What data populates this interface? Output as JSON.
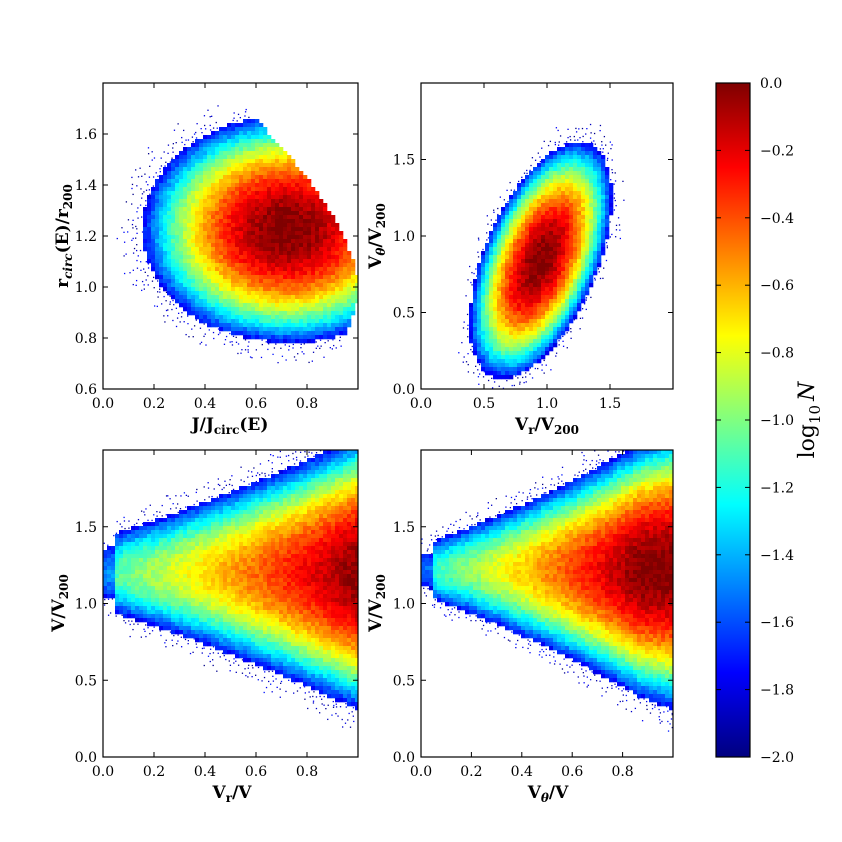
{
  "colormap": {
    "name": "jet",
    "stops": [
      "#00007f",
      "#0000ff",
      "#0080ff",
      "#00ffff",
      "#80ff80",
      "#ffff00",
      "#ff8000",
      "#ff0000",
      "#7f0000"
    ]
  },
  "chart_data": [
    {
      "type": "heatmap",
      "panel": "top-left",
      "xlabel": "J/J",
      "xlabel_sub": "circ",
      "xlabel_tail": "(E)",
      "ylabel": "r",
      "ylabel_sub": "circ",
      "ylabel_mid": "(E)/r",
      "ylabel_sub2": "200",
      "xlim": [
        0,
        1.0
      ],
      "ylim": [
        0.6,
        1.8
      ],
      "xticks": [
        "0.0",
        "0.2",
        "0.4",
        "0.6",
        "0.8"
      ],
      "yticks": [
        "0.6",
        "0.8",
        "1.0",
        "1.2",
        "1.4",
        "1.6"
      ],
      "density_peak": [
        0.75,
        1.22
      ],
      "boundary": "upper-right edge cut by J <= J_circ, tip at x=1.0, y=1.0"
    },
    {
      "type": "heatmap",
      "panel": "top-right",
      "xlabel": "V",
      "xlabel_sub": "r",
      "xlabel_tail": "/V",
      "xlabel_sub2": "200",
      "ylabel": "V",
      "ylabel_sub": "θ",
      "ylabel_mid": "/V",
      "ylabel_sub2": "200",
      "xlim": [
        0,
        2.0
      ],
      "ylim": [
        0,
        2.0
      ],
      "xticks": [
        "0.0",
        "0.5",
        "1.0",
        "1.5"
      ],
      "yticks": [
        "0.0",
        "0.5",
        "1.0",
        "1.5"
      ],
      "density_peak": [
        0.95,
        0.85
      ]
    },
    {
      "type": "heatmap",
      "panel": "bottom-left",
      "xlabel": "V",
      "xlabel_sub": "r",
      "xlabel_tail": "/V",
      "ylabel": "V/V",
      "ylabel_sub": "200",
      "xlim": [
        0,
        1.0
      ],
      "ylim": [
        0,
        2.0
      ],
      "xticks": [
        "0.0",
        "0.2",
        "0.4",
        "0.6",
        "0.8"
      ],
      "yticks": [
        "0.0",
        "0.5",
        "1.0",
        "1.5"
      ],
      "density_peak": [
        0.9,
        1.2
      ]
    },
    {
      "type": "heatmap",
      "panel": "bottom-right",
      "xlabel": "V",
      "xlabel_sub": "θ",
      "xlabel_tail": "/V",
      "ylabel": "V/V",
      "ylabel_sub": "200",
      "xlim": [
        0,
        1.0
      ],
      "ylim": [
        0,
        2.0
      ],
      "xticks": [
        "0.0",
        "0.2",
        "0.4",
        "0.6",
        "0.8"
      ],
      "yticks": [
        "0.0",
        "0.5",
        "1.0",
        "1.5"
      ],
      "density_peak": [
        0.85,
        1.2
      ]
    }
  ],
  "colorbar": {
    "label_base": "log",
    "label_sub": "10",
    "label_var": "N",
    "range": [
      -2.0,
      0.0
    ],
    "ticks": [
      "0.0",
      "−0.2",
      "−0.4",
      "−0.6",
      "−0.8",
      "−1.0",
      "−1.2",
      "−1.4",
      "−1.6",
      "−1.8",
      "−2.0"
    ]
  }
}
